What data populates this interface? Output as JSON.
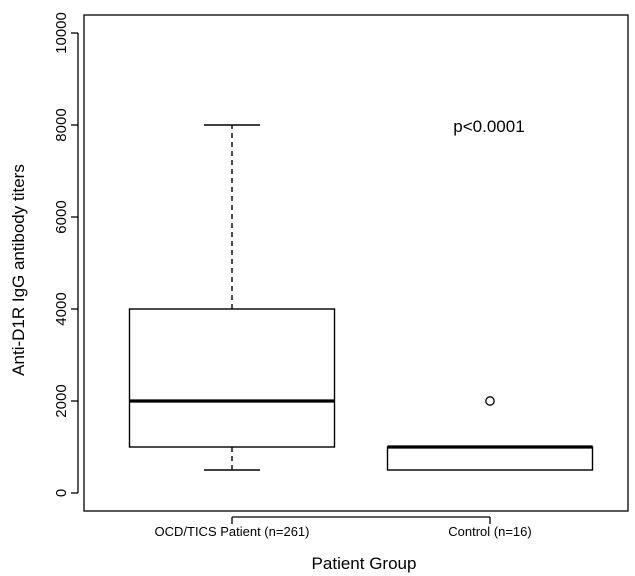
{
  "chart_data": {
    "type": "box",
    "title": "",
    "xlabel": "Patient Group",
    "ylabel": "Anti-D1R IgG antibody titers",
    "ylim": [
      -500,
      10500
    ],
    "yticks": [
      0,
      2000,
      4000,
      6000,
      8000,
      10000
    ],
    "grid": false,
    "annotation": "p<0.0001",
    "categories": [
      "OCD/TICS Patient (n=261)",
      "Control (n=16)"
    ],
    "boxes": [
      {
        "category": "OCD/TICS Patient (n=261)",
        "whisker_low": 500,
        "q1": 1000,
        "median": 2000,
        "q3": 4000,
        "whisker_high": 8000,
        "outliers": []
      },
      {
        "category": "Control (n=16)",
        "whisker_low": 500,
        "q1": 500,
        "median": 1000,
        "q3": 1000,
        "whisker_high": 1000,
        "outliers": [
          2000
        ]
      }
    ],
    "colors": {
      "line": "#000000",
      "box_fill": "#ffffff",
      "background": "#ffffff"
    }
  }
}
